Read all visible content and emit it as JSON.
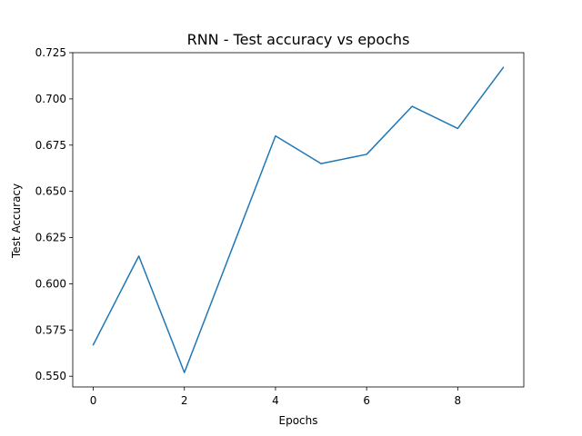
{
  "chart_data": {
    "type": "line",
    "title": "RNN - Test accuracy vs epochs",
    "xlabel": "Epochs",
    "ylabel": "Test Accuracy",
    "xlim": [
      -0.45,
      9.45
    ],
    "ylim": [
      0.5442,
      0.725
    ],
    "xticks": [
      0,
      2,
      4,
      6,
      8
    ],
    "xtick_labels": [
      "0",
      "2",
      "4",
      "6",
      "8"
    ],
    "yticks": [
      0.55,
      0.575,
      0.6,
      0.625,
      0.65,
      0.675,
      0.7,
      0.725
    ],
    "ytick_labels": [
      "0.550",
      "0.575",
      "0.600",
      "0.625",
      "0.650",
      "0.675",
      "0.700",
      "0.725"
    ],
    "grid": false,
    "series": [
      {
        "color": "#1f77b4",
        "x": [
          0,
          1,
          2,
          3,
          4,
          5,
          6,
          7,
          8,
          9
        ],
        "y": [
          0.567,
          0.615,
          0.552,
          0.616,
          0.68,
          0.665,
          0.67,
          0.696,
          0.684,
          0.717
        ]
      }
    ]
  }
}
